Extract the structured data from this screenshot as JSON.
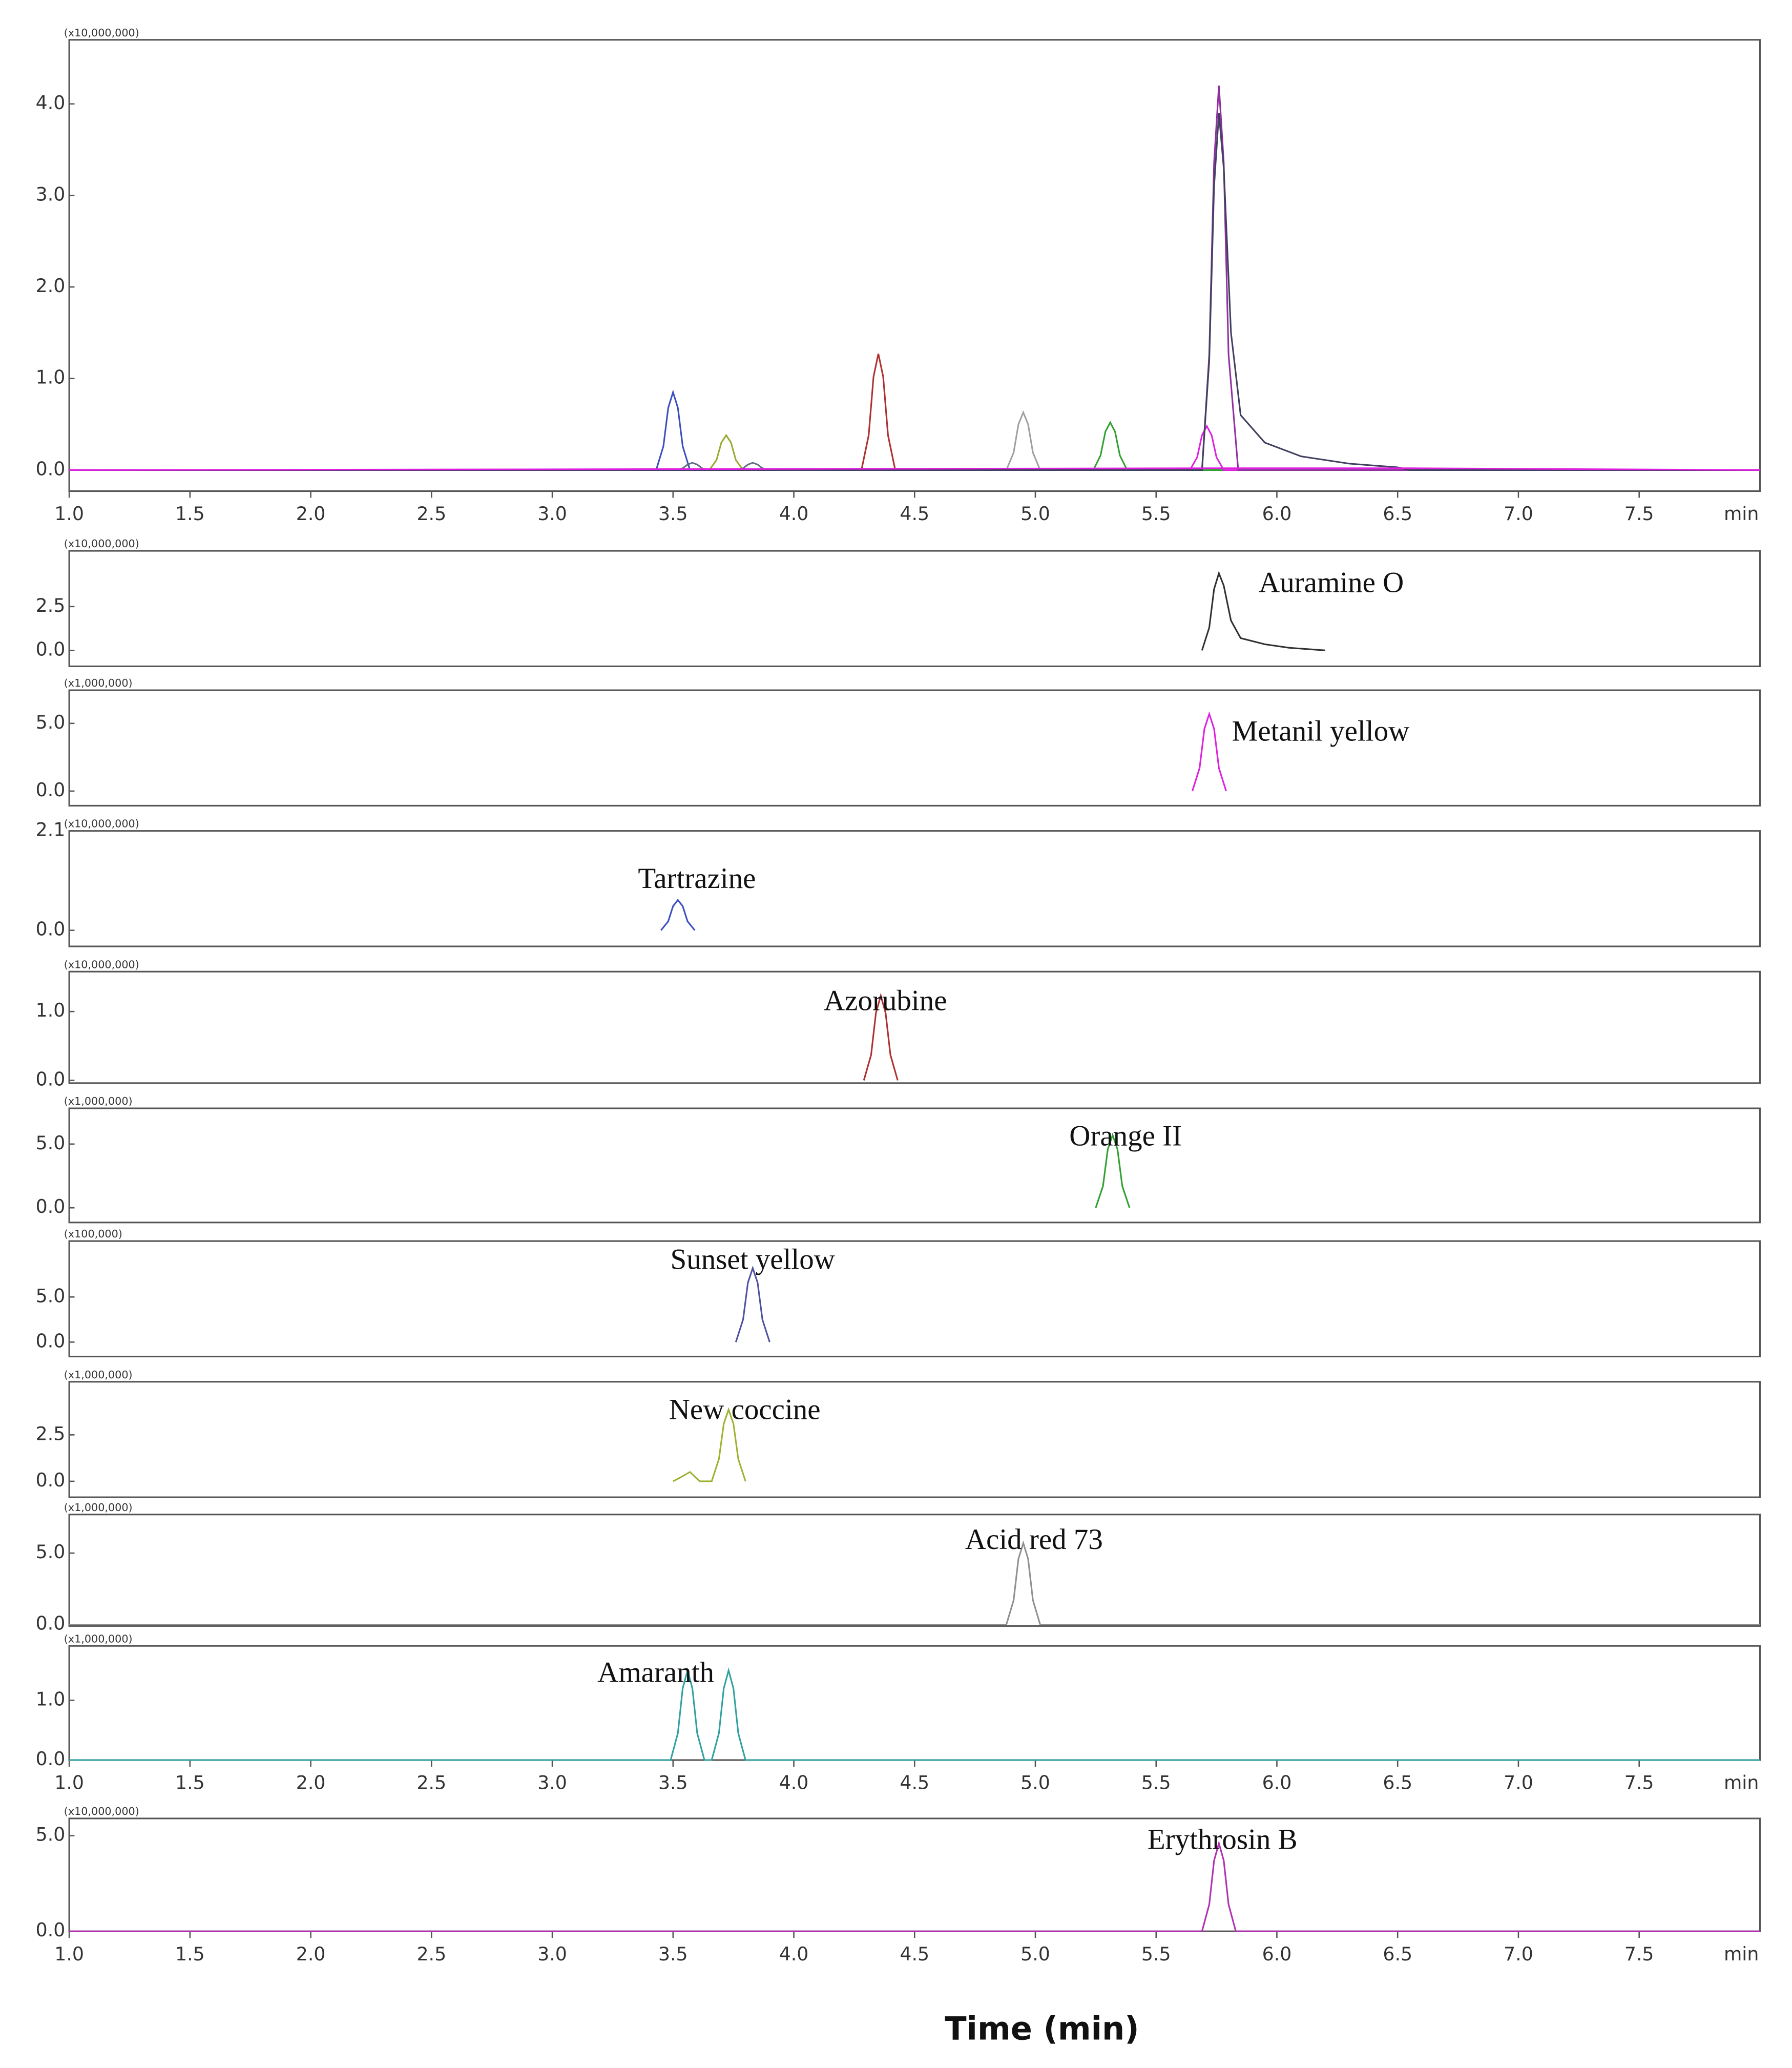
{
  "xlabel": "Time (min)",
  "chart_data": [
    {
      "type": "line",
      "scale_label": "(x10,000,000)",
      "xlim": [
        1.0,
        8.0
      ],
      "ylim": [
        -0.23,
        4.7
      ],
      "xticks": [
        {
          "value": 1.0,
          "label": "1.0"
        },
        1.5,
        {
          "value": 2.0,
          "label": "2.0"
        },
        2.5,
        {
          "value": 3.0,
          "label": "3.0"
        },
        3.5,
        {
          "value": 4.0,
          "label": "4.0"
        },
        4.5,
        {
          "value": 5.0,
          "label": "5.0"
        },
        5.5,
        {
          "value": 6.0,
          "label": "6.0"
        },
        6.5,
        {
          "value": 7.0,
          "label": "7.0"
        },
        7.5
      ],
      "xlabel": "min",
      "yticks": [
        {
          "value": 0,
          "label": "0.0"
        },
        {
          "value": 1,
          "label": "1.0"
        },
        {
          "value": 2,
          "label": "2.0"
        },
        {
          "value": 3,
          "label": "3.0"
        },
        {
          "value": 4,
          "label": "4.0"
        }
      ],
      "series": [
        {
          "color": "#3a4fc0",
          "x": [
            1.0,
            3.43,
            3.46,
            3.48,
            3.5,
            3.52,
            3.54,
            3.57,
            8.0
          ],
          "values": [
            0,
            0,
            0.26,
            0.68,
            0.85,
            0.68,
            0.26,
            0,
            0
          ]
        },
        {
          "color": "#607080",
          "x": [
            1.0,
            3.51,
            3.54,
            3.56,
            3.58,
            3.6,
            3.62,
            3.65,
            8.0
          ],
          "values": [
            0,
            0,
            0.02,
            0.06,
            0.08,
            0.06,
            0.02,
            0,
            0
          ]
        },
        {
          "color": "#9aaa30",
          "x": [
            1.0,
            3.65,
            3.68,
            3.7,
            3.72,
            3.74,
            3.76,
            3.79,
            8.0
          ],
          "values": [
            0,
            0,
            0.11,
            0.3,
            0.38,
            0.3,
            0.11,
            0,
            0
          ]
        },
        {
          "color": "#607080",
          "x": [
            1.0,
            3.76,
            3.79,
            3.81,
            3.83,
            3.85,
            3.87,
            3.9,
            8.0
          ],
          "values": [
            0,
            0,
            0.02,
            0.06,
            0.08,
            0.06,
            0.02,
            0,
            0
          ]
        },
        {
          "color": "#b03030",
          "x": [
            1.0,
            4.28,
            4.31,
            4.33,
            4.35,
            4.37,
            4.39,
            4.42,
            8.0
          ],
          "values": [
            0,
            0,
            0.38,
            1.02,
            1.27,
            1.02,
            0.38,
            0,
            0
          ]
        },
        {
          "color": "#a0a0a0",
          "x": [
            1.0,
            4.88,
            4.91,
            4.93,
            4.95,
            4.97,
            4.99,
            5.02,
            8.0
          ],
          "values": [
            0,
            0,
            0.19,
            0.5,
            0.63,
            0.5,
            0.19,
            0,
            0
          ]
        },
        {
          "color": "#30a030",
          "x": [
            1.0,
            5.24,
            5.27,
            5.29,
            5.31,
            5.33,
            5.35,
            5.38,
            8.0
          ],
          "values": [
            0,
            0,
            0.16,
            0.42,
            0.52,
            0.42,
            0.16,
            0,
            0
          ]
        },
        {
          "color": "#e020e0",
          "x": [
            1.0,
            5.64,
            5.67,
            5.69,
            5.71,
            5.73,
            5.75,
            5.78,
            8.0
          ],
          "values": [
            0,
            0,
            0.14,
            0.38,
            0.48,
            0.38,
            0.14,
            0,
            0
          ]
        },
        {
          "color": "#9030a0",
          "x": [
            1.0,
            5.69,
            5.72,
            5.74,
            5.76,
            5.78,
            5.8,
            5.84,
            8.0
          ],
          "values": [
            0,
            0,
            1.26,
            3.36,
            4.2,
            3.36,
            1.26,
            0,
            0
          ]
        },
        {
          "color": "#404060",
          "x": [
            1.0,
            5.69,
            5.72,
            5.74,
            5.76,
            5.78,
            5.81,
            5.85,
            5.95,
            6.1,
            6.3,
            6.5,
            6.55,
            8.0
          ],
          "values": [
            0,
            0,
            1.2,
            3.1,
            3.9,
            3.3,
            1.5,
            0.6,
            0.3,
            0.15,
            0.07,
            0.03,
            0,
            0
          ]
        },
        {
          "color": "#e020e0",
          "x": [
            1.0,
            5.75,
            6.55,
            8.0
          ],
          "values": [
            0,
            0.02,
            0.02,
            0
          ]
        }
      ]
    },
    {
      "type": "line",
      "scale_label": "(x10,000,000)",
      "annotation": "Auramine O",
      "xlim": [
        1.0,
        8.0
      ],
      "ylim": [
        -0.91,
        5.68
      ],
      "yticks": [
        {
          "value": 0,
          "label": "0.0"
        },
        2.5
      ],
      "series": [
        {
          "color": "#303030",
          "x": [
            5.69,
            5.72,
            5.74,
            5.76,
            5.78,
            5.81,
            5.85,
            5.95,
            6.05,
            6.2
          ],
          "values": [
            0,
            1.3,
            3.5,
            4.4,
            3.7,
            1.7,
            0.7,
            0.35,
            0.15,
            0
          ]
        }
      ]
    },
    {
      "type": "line",
      "scale_label": "(x1,000,000)",
      "annotation": "Metanil yellow",
      "xlim": [
        1.0,
        8.0
      ],
      "ylim": [
        -1.08,
        7.45
      ],
      "yticks": [
        {
          "value": 0,
          "label": "0.0"
        },
        {
          "value": 5,
          "label": "5.0"
        }
      ],
      "series": [
        {
          "color": "#e020e0",
          "x": [
            5.65,
            5.68,
            5.7,
            5.72,
            5.74,
            5.76,
            5.79
          ],
          "values": [
            0,
            1.7,
            4.6,
            5.7,
            4.6,
            1.7,
            0
          ]
        }
      ]
    },
    {
      "type": "line",
      "scale_label": "(x10,000,000)",
      "annotation": "Tartrazine",
      "xlim": [
        1.0,
        8.0
      ],
      "ylim": [
        -0.34,
        2.1
      ],
      "yticks": [
        {
          "value": 0,
          "label": "0.0"
        },
        2.1
      ],
      "series": [
        {
          "color": "#3a4fc0",
          "x": [
            3.45,
            3.48,
            3.5,
            3.52,
            3.54,
            3.56,
            3.59
          ],
          "values": [
            0,
            0.19,
            0.51,
            0.64,
            0.51,
            0.19,
            0
          ]
        }
      ]
    },
    {
      "type": "line",
      "scale_label": "(x10,000,000)",
      "annotation": "Azorubine",
      "xlim": [
        1.0,
        8.0
      ],
      "ylim": [
        -0.04,
        1.58
      ],
      "yticks": [
        {
          "value": 0,
          "label": "0.0"
        },
        {
          "value": 1,
          "label": "1.0"
        }
      ],
      "series": [
        {
          "color": "#b03030",
          "x": [
            4.29,
            4.32,
            4.34,
            4.36,
            4.38,
            4.4,
            4.43
          ],
          "values": [
            0,
            0.37,
            0.98,
            1.23,
            0.98,
            0.37,
            0
          ]
        }
      ]
    },
    {
      "type": "line",
      "scale_label": "(x1,000,000)",
      "annotation": "Orange II",
      "xlim": [
        1.0,
        8.0
      ],
      "ylim": [
        -1.15,
        7.8
      ],
      "yticks": [
        {
          "value": 0,
          "label": "0.0"
        },
        {
          "value": 5,
          "label": "5.0"
        }
      ],
      "series": [
        {
          "color": "#30a030",
          "x": [
            5.25,
            5.28,
            5.3,
            5.32,
            5.34,
            5.36,
            5.39
          ],
          "values": [
            0,
            1.7,
            4.6,
            5.7,
            4.6,
            1.7,
            0
          ]
        }
      ]
    },
    {
      "type": "line",
      "scale_label": "(x100,000)",
      "annotation": "Sunset yellow",
      "xlim": [
        1.0,
        8.0
      ],
      "ylim": [
        -1.6,
        11.2
      ],
      "yticks": [
        {
          "value": 0,
          "label": "0.0"
        },
        {
          "value": 5,
          "label": "5.0"
        }
      ],
      "series": [
        {
          "color": "#5050a0",
          "x": [
            3.76,
            3.79,
            3.81,
            3.83,
            3.85,
            3.87,
            3.9
          ],
          "values": [
            0,
            2.5,
            6.6,
            8.2,
            6.6,
            2.5,
            0
          ]
        }
      ]
    },
    {
      "type": "line",
      "scale_label": "(x1,000,000)",
      "annotation": "New coccine",
      "xlim": [
        1.0,
        8.0
      ],
      "ylim": [
        -0.86,
        5.36
      ],
      "yticks": [
        {
          "value": 0,
          "label": "0.0"
        },
        2.5
      ],
      "series": [
        {
          "color": "#a0b030",
          "x": [
            3.5,
            3.53,
            3.57,
            3.61,
            3.66,
            3.69,
            3.71,
            3.73,
            3.75,
            3.77,
            3.8
          ],
          "values": [
            0,
            0.2,
            0.5,
            0,
            0,
            1.2,
            3.1,
            3.86,
            3.1,
            1.2,
            0
          ]
        }
      ]
    },
    {
      "type": "line",
      "scale_label": "(x1,000,000)",
      "annotation": "Acid red 73",
      "xlim": [
        1.0,
        8.0
      ],
      "ylim": [
        -0.1,
        7.7
      ],
      "yticks": [
        {
          "value": 0,
          "label": "0.0"
        },
        {
          "value": 5,
          "label": "5.0"
        }
      ],
      "series": [
        {
          "color": "#909090",
          "x": [
            1.0,
            4.88,
            4.91,
            4.93,
            4.95,
            4.97,
            4.99,
            5.02,
            8.0
          ],
          "values": [
            0,
            0,
            1.7,
            4.6,
            5.7,
            4.6,
            1.7,
            0,
            0
          ]
        }
      ]
    },
    {
      "type": "line",
      "scale_label": "(x1,000,000)",
      "annotation": "Amaranth",
      "xlim": [
        1.0,
        8.0
      ],
      "ylim": [
        0,
        1.91
      ],
      "xticks": [
        {
          "value": 1.0,
          "label": "1.0"
        },
        1.5,
        {
          "value": 2.0,
          "label": "2.0"
        },
        2.5,
        {
          "value": 3.0,
          "label": "3.0"
        },
        3.5,
        {
          "value": 4.0,
          "label": "4.0"
        },
        4.5,
        {
          "value": 5.0,
          "label": "5.0"
        },
        5.5,
        {
          "value": 6.0,
          "label": "6.0"
        },
        6.5,
        {
          "value": 7.0,
          "label": "7.0"
        },
        7.5
      ],
      "xlabel": "min",
      "yticks": [
        {
          "value": 0,
          "label": "0.0"
        },
        {
          "value": 1,
          "label": "1.0"
        }
      ],
      "series": [
        {
          "color": "#30a0a0",
          "x": [
            1.0,
            3.49,
            3.52,
            3.54,
            3.56,
            3.58,
            3.6,
            3.63,
            3.66,
            3.69,
            3.71,
            3.73,
            3.75,
            3.77,
            3.8,
            8.0
          ],
          "values": [
            0,
            0,
            0.45,
            1.2,
            1.5,
            1.2,
            0.45,
            0,
            0,
            0.45,
            1.2,
            1.5,
            1.2,
            0.45,
            0,
            0
          ]
        }
      ]
    },
    {
      "type": "line",
      "scale_label": "(x10,000,000)",
      "annotation": "Erythrosin B",
      "xlim": [
        1.0,
        8.0
      ],
      "ylim": [
        0,
        5.9
      ],
      "xticks": [
        {
          "value": 1.0,
          "label": "1.0"
        },
        1.5,
        {
          "value": 2.0,
          "label": "2.0"
        },
        2.5,
        {
          "value": 3.0,
          "label": "3.0"
        },
        3.5,
        {
          "value": 4.0,
          "label": "4.0"
        },
        4.5,
        {
          "value": 5.0,
          "label": "5.0"
        },
        5.5,
        {
          "value": 6.0,
          "label": "6.0"
        },
        6.5,
        {
          "value": 7.0,
          "label": "7.0"
        },
        7.5
      ],
      "xlabel": "min",
      "yticks": [
        {
          "value": 0,
          "label": "0.0"
        },
        {
          "value": 5,
          "label": "5.0"
        }
      ],
      "series": [
        {
          "color": "#b030b0",
          "x": [
            1.0,
            5.69,
            5.72,
            5.74,
            5.76,
            5.78,
            5.8,
            5.83,
            8.0
          ],
          "values": [
            0,
            0,
            1.4,
            3.7,
            4.6,
            3.7,
            1.4,
            0,
            0
          ]
        }
      ]
    }
  ]
}
